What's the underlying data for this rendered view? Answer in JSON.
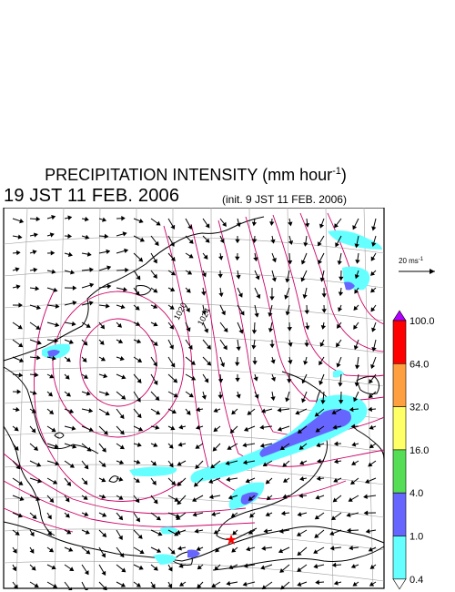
{
  "header": {
    "title_main": "PRECIPITATION INTENSITY (mm hour",
    "title_exp": "-1",
    "title_close": ")",
    "valid_time": "19 JST 11 FEB. 2006",
    "init_time": "(init. 9 JST 11 FEB. 2006)"
  },
  "map": {
    "isobar_labels": [
      "1020",
      "1024"
    ],
    "marker": {
      "symbol": "★",
      "color": "#ff0000",
      "name": "observation-site"
    }
  },
  "scale_arrow": {
    "label": "20 ms",
    "exp": "-1"
  },
  "legend": {
    "levels": [
      "100.0",
      "64.0",
      "32.0",
      "16.0",
      "4.0",
      "1.0",
      "0.4"
    ],
    "colors": [
      "#b000ff",
      "#ff0000",
      "#ffa040",
      "#ffff66",
      "#55dd55",
      "#6666ff",
      "#66ffff",
      "#ffffff"
    ]
  },
  "colors": {
    "isobar": "#cc0066",
    "coastline": "#000000",
    "grid": "#a0a0a0",
    "wind_vector": "#000000",
    "precip_light": "#66ffff",
    "precip_medium": "#6666ff"
  }
}
